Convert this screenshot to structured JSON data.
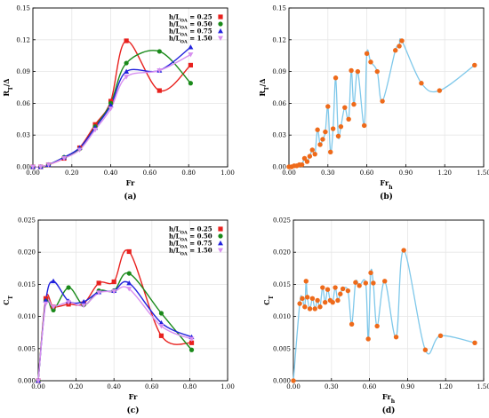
{
  "chart_data": [
    {
      "type": "line",
      "panel_label": "(a)",
      "xlabel": "Fr",
      "ylabel": "R_T/Δ",
      "xlim": [
        0,
        1.0
      ],
      "ylim": [
        0,
        0.15
      ],
      "xticks": [
        "0.00",
        "0.20",
        "0.40",
        "0.60",
        "0.80",
        "1.00"
      ],
      "yticks": [
        "0.00",
        "0.03",
        "0.06",
        "0.09",
        "0.12",
        "0.15"
      ],
      "xtick_values": [
        0,
        0.2,
        0.4,
        0.6,
        0.8,
        1.0
      ],
      "ytick_values": [
        0,
        0.03,
        0.06,
        0.09,
        0.12,
        0.15
      ],
      "legend": "top-right",
      "series": [
        {
          "name": "h/L_OA = 0.25",
          "color": "#e8211e",
          "marker": "square",
          "x": [
            0,
            0.04,
            0.08,
            0.16,
            0.24,
            0.32,
            0.4,
            0.48,
            0.65,
            0.81
          ],
          "y": [
            0,
            0,
            0.002,
            0.008,
            0.018,
            0.04,
            0.062,
            0.119,
            0.072,
            0.096
          ]
        },
        {
          "name": "h/L_OA = 0.50",
          "color": "#1a8a1a",
          "marker": "circle",
          "x": [
            0,
            0.04,
            0.08,
            0.16,
            0.24,
            0.32,
            0.4,
            0.48,
            0.65,
            0.81
          ],
          "y": [
            0,
            0,
            0.002,
            0.009,
            0.017,
            0.038,
            0.06,
            0.098,
            0.109,
            0.079
          ]
        },
        {
          "name": "h/L_OA = 0.75",
          "color": "#2222dd",
          "marker": "triangle",
          "x": [
            0,
            0.04,
            0.08,
            0.16,
            0.24,
            0.32,
            0.4,
            0.48,
            0.65,
            0.81
          ],
          "y": [
            0,
            0,
            0.002,
            0.009,
            0.018,
            0.037,
            0.058,
            0.09,
            0.091,
            0.113
          ]
        },
        {
          "name": "h/L_OA = 1.50",
          "color": "#d78ff0",
          "marker": "triangle-down",
          "x": [
            0,
            0.04,
            0.08,
            0.16,
            0.24,
            0.32,
            0.4,
            0.48,
            0.65,
            0.81
          ],
          "y": [
            0,
            0,
            0.002,
            0.008,
            0.016,
            0.035,
            0.055,
            0.085,
            0.091,
            0.106
          ]
        }
      ]
    },
    {
      "type": "scatter",
      "panel_label": "(b)",
      "xlabel": "Fr_h",
      "ylabel": "R_T/Δ",
      "xlim": [
        0,
        1.5
      ],
      "ylim": [
        0,
        0.15
      ],
      "xticks": [
        "0.00",
        "0.30",
        "0.60",
        "0.90",
        "1.20",
        "1.50"
      ],
      "yticks": [
        "0.00",
        "0.03",
        "0.06",
        "0.09",
        "0.12",
        "0.15"
      ],
      "xtick_values": [
        0,
        0.3,
        0.6,
        0.9,
        1.2,
        1.5
      ],
      "ytick_values": [
        0,
        0.03,
        0.06,
        0.09,
        0.12,
        0.15
      ],
      "series": [
        {
          "point_color": "#ee6a1a",
          "line_color": "#7fc8ea",
          "x": [
            0.0,
            0.02,
            0.04,
            0.06,
            0.08,
            0.1,
            0.12,
            0.14,
            0.16,
            0.18,
            0.2,
            0.22,
            0.24,
            0.26,
            0.28,
            0.3,
            0.32,
            0.34,
            0.36,
            0.38,
            0.4,
            0.43,
            0.46,
            0.48,
            0.5,
            0.53,
            0.58,
            0.6,
            0.63,
            0.68,
            0.72,
            0.82,
            0.85,
            0.87,
            1.02,
            1.16,
            1.43
          ],
          "y": [
            0,
            0,
            0.001,
            0.001,
            0.002,
            0.002,
            0.008,
            0.005,
            0.01,
            0.016,
            0.012,
            0.035,
            0.021,
            0.026,
            0.033,
            0.057,
            0.014,
            0.036,
            0.084,
            0.029,
            0.038,
            0.056,
            0.045,
            0.091,
            0.059,
            0.09,
            0.039,
            0.107,
            0.099,
            0.09,
            0.062,
            0.11,
            0.114,
            0.119,
            0.079,
            0.072,
            0.096
          ]
        }
      ]
    },
    {
      "type": "line",
      "panel_label": "(c)",
      "xlabel": "Fr",
      "ylabel": "C_T",
      "xlim": [
        0,
        1.0
      ],
      "ylim": [
        0,
        0.025
      ],
      "xticks": [
        "0.00",
        "0.20",
        "0.40",
        "0.60",
        "0.80",
        "1.00"
      ],
      "yticks": [
        "0.000",
        "0.005",
        "0.010",
        "0.015",
        "0.020",
        "0.025"
      ],
      "xtick_values": [
        0,
        0.2,
        0.4,
        0.6,
        0.8,
        1.0
      ],
      "ytick_values": [
        0,
        0.005,
        0.01,
        0.015,
        0.02,
        0.025
      ],
      "legend": "top-right",
      "series": [
        {
          "name": "h/L_OA = 0.25",
          "color": "#e8211e",
          "marker": "square",
          "x": [
            0,
            0.04,
            0.08,
            0.16,
            0.24,
            0.32,
            0.4,
            0.48,
            0.65,
            0.81
          ],
          "y": [
            0,
            0.0128,
            0.0115,
            0.0119,
            0.012,
            0.0152,
            0.0154,
            0.0201,
            0.007,
            0.0059
          ]
        },
        {
          "name": "h/L_OA = 0.50",
          "color": "#1a8a1a",
          "marker": "circle",
          "x": [
            0,
            0.04,
            0.08,
            0.16,
            0.24,
            0.32,
            0.4,
            0.48,
            0.65,
            0.81
          ],
          "y": [
            0,
            0.0124,
            0.011,
            0.0145,
            0.0118,
            0.014,
            0.014,
            0.0167,
            0.0105,
            0.0048
          ]
        },
        {
          "name": "h/L_OA = 0.75",
          "color": "#2222dd",
          "marker": "triangle",
          "x": [
            0,
            0.04,
            0.08,
            0.16,
            0.24,
            0.32,
            0.4,
            0.48,
            0.65,
            0.81
          ],
          "y": [
            0,
            0.0125,
            0.0155,
            0.0124,
            0.0123,
            0.0138,
            0.014,
            0.0152,
            0.009,
            0.0068
          ]
        },
        {
          "name": "h/L_OA = 1.50",
          "color": "#d78ff0",
          "marker": "triangle-down",
          "x": [
            0,
            0.04,
            0.08,
            0.16,
            0.24,
            0.32,
            0.4,
            0.48,
            0.65,
            0.81
          ],
          "y": [
            0,
            0.012,
            0.0115,
            0.0122,
            0.0117,
            0.0137,
            0.0139,
            0.0143,
            0.0085,
            0.0065
          ]
        }
      ]
    },
    {
      "type": "scatter",
      "panel_label": "(d)",
      "xlabel": "Fr_h",
      "ylabel": "C_T",
      "xlim": [
        0,
        1.5
      ],
      "ylim": [
        0,
        0.025
      ],
      "xticks": [
        "0.00",
        "0.30",
        "0.60",
        "0.90",
        "1.20",
        "1.50"
      ],
      "yticks": [
        "0.000",
        "0.005",
        "0.010",
        "0.015",
        "0.020",
        "0.025"
      ],
      "xtick_values": [
        0,
        0.3,
        0.6,
        0.9,
        1.2,
        1.5
      ],
      "ytick_values": [
        0,
        0.005,
        0.01,
        0.015,
        0.02,
        0.025
      ],
      "series": [
        {
          "point_color": "#ee6a1a",
          "line_color": "#7fc8ea",
          "x": [
            0.0,
            0.05,
            0.07,
            0.09,
            0.1,
            0.11,
            0.13,
            0.15,
            0.17,
            0.19,
            0.21,
            0.23,
            0.25,
            0.27,
            0.29,
            0.31,
            0.33,
            0.35,
            0.37,
            0.39,
            0.43,
            0.46,
            0.49,
            0.52,
            0.57,
            0.59,
            0.61,
            0.63,
            0.66,
            0.72,
            0.81,
            0.87,
            1.04,
            1.16,
            1.43
          ],
          "y": [
            0,
            0.012,
            0.0128,
            0.0115,
            0.0155,
            0.013,
            0.0112,
            0.0128,
            0.0112,
            0.0125,
            0.0115,
            0.0145,
            0.0122,
            0.0142,
            0.0125,
            0.0122,
            0.0145,
            0.0125,
            0.0135,
            0.0143,
            0.014,
            0.0088,
            0.0153,
            0.0148,
            0.0152,
            0.0065,
            0.0168,
            0.0152,
            0.0085,
            0.0155,
            0.0068,
            0.0203,
            0.0048,
            0.007,
            0.0059
          ]
        }
      ]
    }
  ]
}
